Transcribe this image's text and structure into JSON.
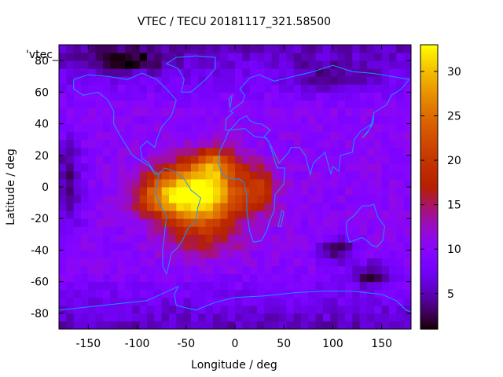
{
  "chart_data": {
    "type": "heatmap",
    "title": "VTEC / TECU 20181117_321.58500",
    "xlabel": "Longitude / deg",
    "ylabel": "Latitude / deg",
    "xlim": [
      -180,
      180
    ],
    "ylim": [
      -90,
      90
    ],
    "x_ticks": [
      -150,
      -100,
      -50,
      0,
      50,
      100,
      150
    ],
    "y_ticks": [
      -80,
      -60,
      -40,
      -20,
      0,
      20,
      40,
      60,
      80
    ],
    "legend_label": "'vtec_",
    "colorbar": {
      "range": [
        1,
        33
      ],
      "ticks": [
        5,
        10,
        15,
        20,
        25,
        30
      ],
      "colormap": "gnuplot"
    },
    "grid": {
      "lon_step": 7.5,
      "lat_step": 5
    },
    "overlay": "coastlines",
    "blobs": [
      {
        "lon": -35,
        "lat": -5,
        "sx": 40,
        "sy": 20,
        "amp": 24
      },
      {
        "lon": -20,
        "lat": 15,
        "sx": 20,
        "sy": 10,
        "amp": 10
      },
      {
        "lon": -75,
        "lat": -5,
        "sx": 30,
        "sy": 14,
        "amp": 10
      },
      {
        "lon": 25,
        "lat": 0,
        "sx": 20,
        "sy": 14,
        "amp": 8
      },
      {
        "lon": -30,
        "lat": -35,
        "sx": 40,
        "sy": 12,
        "amp": 4
      }
    ],
    "background_vtec": 10
  },
  "colors": {
    "coastline": "#1e90ff",
    "axis": "#000000"
  }
}
